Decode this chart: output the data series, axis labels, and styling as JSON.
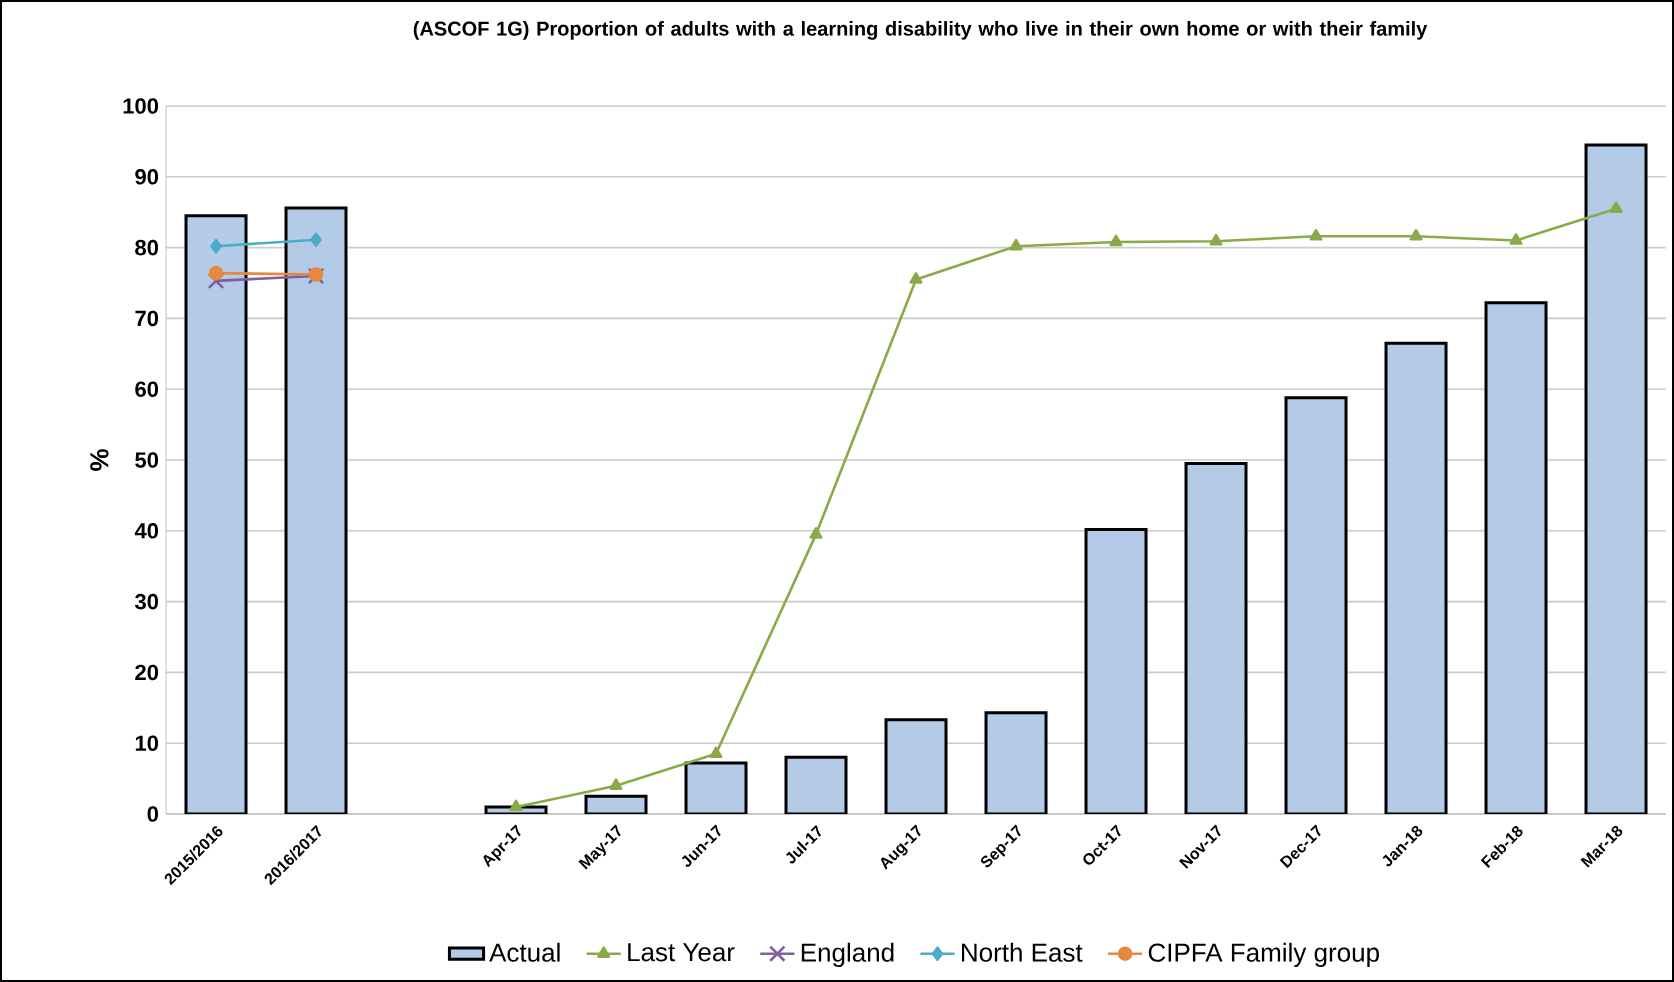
{
  "chart_data": {
    "type": "bar",
    "title": "(ASCOF 1G) Proportion of adults with a learning disability who live in their own home or with their family",
    "ylabel": "%",
    "categories": [
      "2015/2016",
      "2016/2017",
      null,
      "Apr-17",
      "May-17",
      "Jun-17",
      "Jul-17",
      "Aug-17",
      "Sep-17",
      "Oct-17",
      "Nov-17",
      "Dec-17",
      "Jan-18",
      "Feb-18",
      "Mar-18"
    ],
    "series": [
      {
        "name": "Actual",
        "color": "#b4cbe8",
        "values": [
          84.5,
          85.6,
          null,
          1,
          2.5,
          7.2,
          8,
          13.3,
          14.3,
          40.2,
          49.5,
          58.8,
          66.5,
          72.2,
          94.5
        ]
      },
      {
        "name": "Last Year",
        "type": "line",
        "color": "#8aaa4a",
        "marker": "triangle",
        "values": [
          null,
          null,
          null,
          1,
          4,
          8.5,
          39.5,
          75.5,
          80.2,
          80.8,
          80.9,
          81.6,
          81.6,
          81.0,
          85.5
        ]
      },
      {
        "name": "England",
        "type": "line",
        "color": "#7f5fa0",
        "marker": "cross",
        "values": [
          75.3,
          76.0,
          null,
          null,
          null,
          null,
          null,
          null,
          null,
          null,
          null,
          null,
          null,
          null,
          null
        ]
      },
      {
        "name": "North East",
        "type": "line",
        "color": "#4bacc6",
        "marker": "diamond",
        "values": [
          80.2,
          81.1,
          null,
          null,
          null,
          null,
          null,
          null,
          null,
          null,
          null,
          null,
          null,
          null,
          null
        ]
      },
      {
        "name": "CIPFA Family group",
        "type": "line",
        "color": "#e6893c",
        "marker": "circle",
        "values": [
          76.4,
          76.2,
          null,
          null,
          null,
          null,
          null,
          null,
          null,
          null,
          null,
          null,
          null,
          null,
          null
        ]
      }
    ],
    "ylim": [
      0,
      100
    ],
    "yticks": [
      0,
      10,
      20,
      30,
      40,
      50,
      60,
      70,
      80,
      90,
      100
    ],
    "grid": "y",
    "legend": "bottom"
  }
}
